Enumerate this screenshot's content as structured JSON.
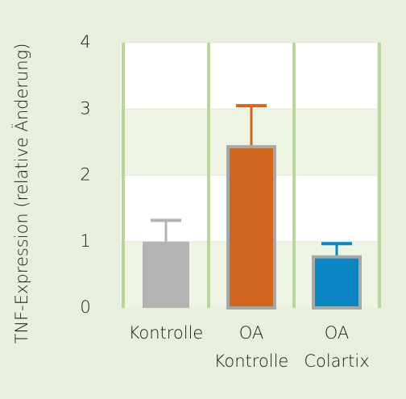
{
  "chart_data": {
    "type": "bar",
    "y_label": "TNF-Expression  (relative Änderung)",
    "categories": [
      [
        "Kontrolle"
      ],
      [
        "OA",
        "Kontrolle"
      ],
      [
        "OA",
        "Colartix"
      ]
    ],
    "values": [
      1.0,
      2.43,
      0.77
    ],
    "errors": [
      0.32,
      0.62,
      0.2
    ],
    "colors": [
      "#b3b3b3",
      "#d0661f",
      "#0b86c2"
    ],
    "ylim": [
      0,
      4
    ],
    "yticks": [
      0,
      1,
      2,
      3,
      4
    ],
    "grid": true
  }
}
